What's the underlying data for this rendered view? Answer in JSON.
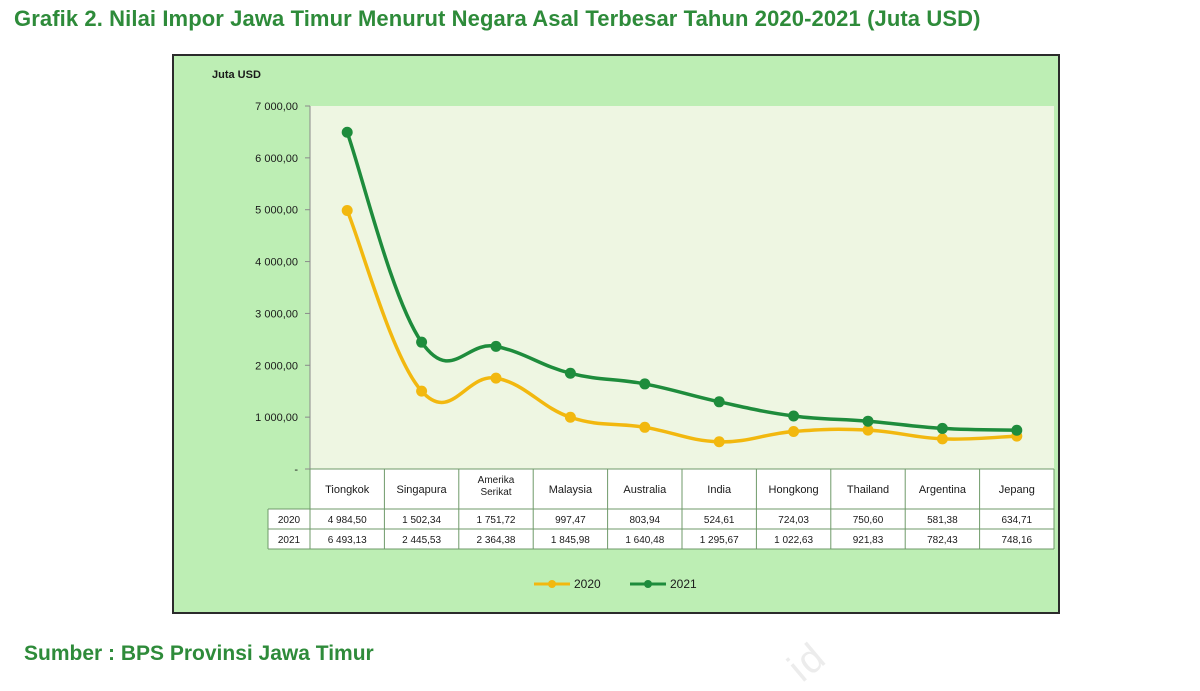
{
  "title": "Grafik 2. Nilai Impor Jawa Timur Menurut Negara Asal Terbesar Tahun 2020-2021 (Juta USD)",
  "source": "Sumber : BPS Provinsi Jawa Timur",
  "watermark": "id",
  "chart_data": {
    "type": "line",
    "ylabel": "Juta USD",
    "ylim": [
      0,
      7000
    ],
    "y_ticks": [
      {
        "value": 0,
        "label": "-"
      },
      {
        "value": 1000,
        "label": "1 000,00"
      },
      {
        "value": 2000,
        "label": "2 000,00"
      },
      {
        "value": 3000,
        "label": "3 000,00"
      },
      {
        "value": 4000,
        "label": "4 000,00"
      },
      {
        "value": 5000,
        "label": "5 000,00"
      },
      {
        "value": 6000,
        "label": "6 000,00"
      },
      {
        "value": 7000,
        "label": "7 000,00"
      }
    ],
    "categories": [
      [
        "Tiongkok"
      ],
      [
        "Singapura"
      ],
      [
        "Amerika",
        "Serikat"
      ],
      [
        "Malaysia"
      ],
      [
        "Australia"
      ],
      [
        "India"
      ],
      [
        "Hongkong"
      ],
      [
        "Thailand"
      ],
      [
        "Argentina"
      ],
      [
        "Jepang"
      ]
    ],
    "series": [
      {
        "name": "2020",
        "color": "#f2b80f",
        "values": [
          4984.5,
          1502.34,
          1751.72,
          997.47,
          803.94,
          524.61,
          724.03,
          750.6,
          581.38,
          634.71
        ],
        "value_labels": [
          "4 984,50",
          "1 502,34",
          "1 751,72",
          "997,47",
          "803,94",
          "524,61",
          "724,03",
          "750,60",
          "581,38",
          "634,71"
        ]
      },
      {
        "name": "2021",
        "color": "#1e8c3c",
        "values": [
          6493.13,
          2445.53,
          2364.38,
          1845.98,
          1640.48,
          1295.67,
          1022.63,
          921.83,
          782.43,
          748.16
        ],
        "value_labels": [
          "6 493,13",
          "2 445,53",
          "2 364,38",
          "1 845,98",
          "1 640,48",
          "1 295,67",
          "1 022,63",
          "921,83",
          "782,43",
          "748,16"
        ]
      }
    ],
    "data_table": true,
    "legend_position": "bottom-center",
    "plot_background": "#eef6e2",
    "chart_background": "#bdeeb4"
  }
}
